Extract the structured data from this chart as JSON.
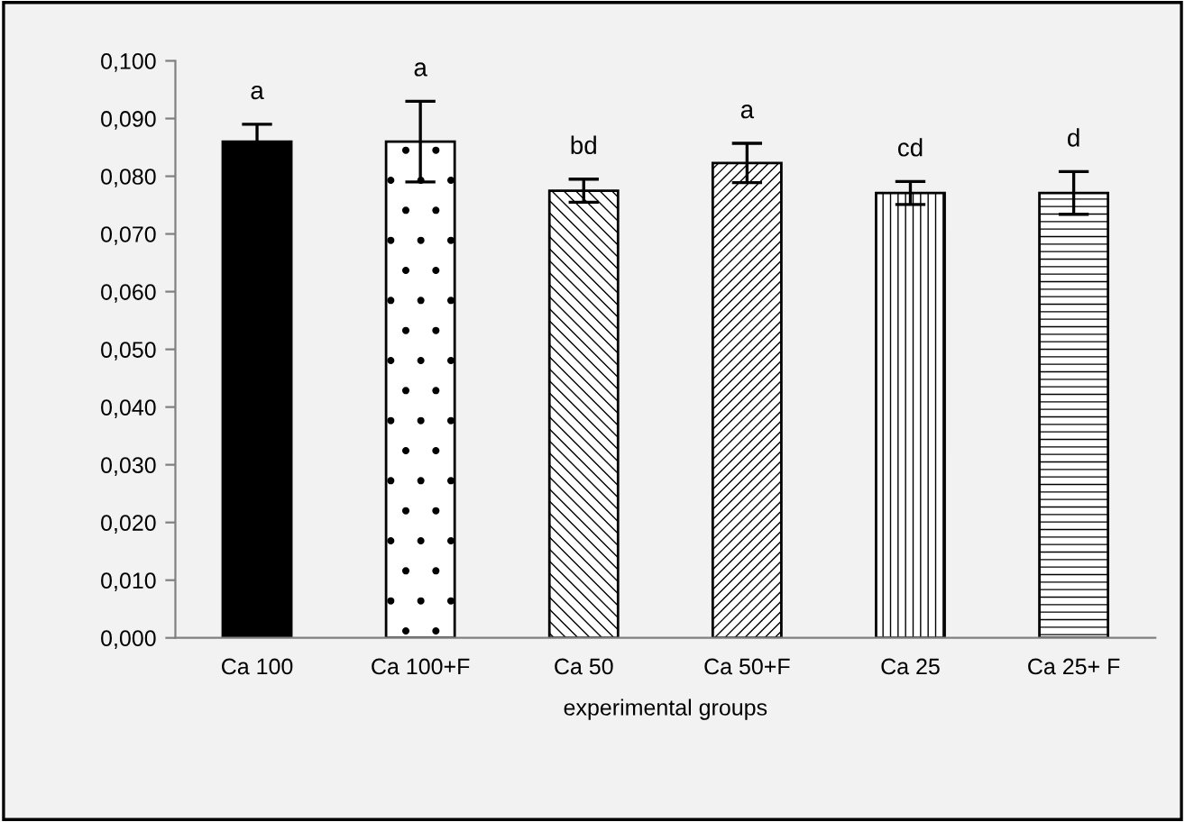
{
  "chart_data": {
    "type": "bar",
    "xlabel": "experimental groups",
    "categories": [
      "Ca 100",
      "Ca 100+F",
      "Ca 50",
      "Ca 50+F",
      "Ca 25",
      "Ca 25+ F"
    ],
    "values": [
      0.086,
      0.086,
      0.0775,
      0.0823,
      0.0771,
      0.0771
    ],
    "errors": [
      0.003,
      0.007,
      0.002,
      0.0034,
      0.002,
      0.0037
    ],
    "colors": [
      "#000000",
      "#ffffff",
      "#ffffff",
      "#ffffff",
      "#ffffff",
      "#ffffff"
    ],
    "ylim": [
      0,
      0.1
    ],
    "yticks": [
      {
        "value": 0,
        "label": "0,000"
      },
      {
        "value": 0.01,
        "label": "0,010"
      },
      {
        "value": 0.02,
        "label": "0,020"
      },
      {
        "value": 0.03,
        "label": "0,030"
      },
      {
        "value": 0.04,
        "label": "0,040"
      },
      {
        "value": 0.05,
        "label": "0,050"
      },
      {
        "value": 0.06,
        "label": "0,060"
      },
      {
        "value": 0.07,
        "label": "0,070"
      },
      {
        "value": 0.08,
        "label": "0,080"
      },
      {
        "value": 0.09,
        "label": "0,090"
      },
      {
        "value": 0.1,
        "label": "0,100"
      }
    ],
    "annotations": [
      {
        "text": "a",
        "x": "Ca 100",
        "y": 0.089
      },
      {
        "text": "a",
        "x": "Ca 100+F",
        "y": 0.093
      },
      {
        "text": "bd",
        "x": "Ca 50",
        "y": 0.0795
      },
      {
        "text": "a",
        "x": "Ca 50+F",
        "y": 0.0857
      },
      {
        "text": "cd",
        "x": "Ca 25",
        "y": 0.0791
      },
      {
        "text": "d",
        "x": "Ca 25+ F",
        "y": 0.0808
      }
    ],
    "grid": false,
    "legend": false
  }
}
